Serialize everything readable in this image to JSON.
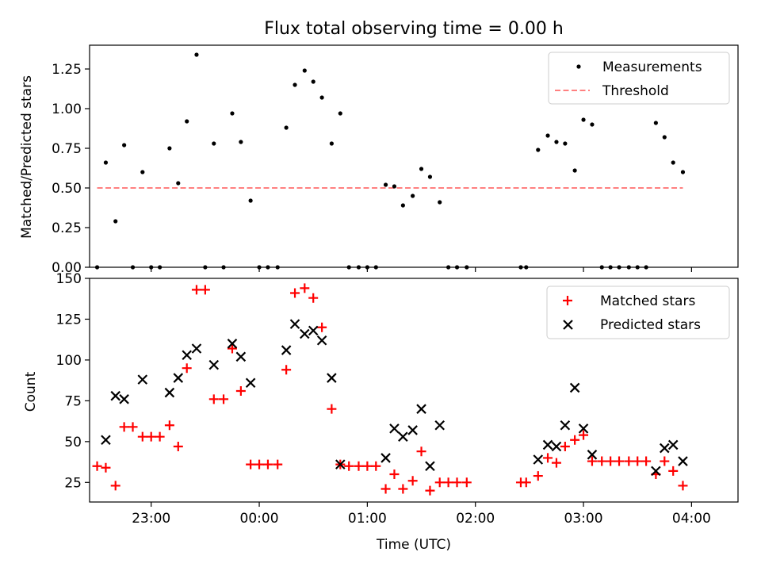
{
  "figure_title": "Flux total observing time = 0.00 h",
  "chart_data": [
    {
      "type": "scatter",
      "title": "Flux total observing time = 0.00 h",
      "xlabel": "",
      "ylabel": "Matched/Predicted stars",
      "xlim": [
        -1.57,
        4.43
      ],
      "ylim": [
        0,
        1.4
      ],
      "yticks": [
        "0.00",
        "0.25",
        "0.50",
        "0.75",
        "1.00",
        "1.25"
      ],
      "legend": {
        "position": "top-right",
        "entries": [
          "Measurements",
          "Threshold"
        ]
      },
      "series": [
        {
          "name": "Measurements",
          "color": "#000000",
          "x": [
            -1.5,
            -1.42,
            -1.33,
            -1.25,
            -1.17,
            -1.08,
            -1.0,
            -0.92,
            -0.83,
            -0.75,
            -0.67,
            -0.58,
            -0.5,
            -0.42,
            -0.33,
            -0.25,
            -0.17,
            -0.08,
            0.0,
            0.08,
            0.17,
            0.25,
            0.33,
            0.42,
            0.5,
            0.58,
            0.67,
            0.75,
            0.83,
            0.92,
            1.0,
            1.08,
            1.17,
            1.25,
            1.33,
            1.42,
            1.5,
            1.58,
            1.67,
            1.75,
            1.83,
            1.92,
            2.42,
            2.47,
            2.58,
            2.67,
            2.75,
            2.83,
            2.92,
            3.0,
            3.08,
            3.17,
            3.25,
            3.33,
            3.42,
            3.5,
            3.58,
            3.67,
            3.75,
            3.83,
            3.92
          ],
          "y": [
            0.0,
            0.66,
            0.29,
            0.77,
            0.0,
            0.6,
            0.0,
            0.0,
            0.75,
            0.53,
            0.92,
            1.34,
            0.0,
            0.78,
            0.0,
            0.97,
            0.79,
            0.42,
            0.0,
            0.0,
            0.0,
            0.88,
            1.15,
            1.24,
            1.17,
            1.07,
            0.78,
            0.97,
            0.0,
            0.0,
            0.0,
            0.0,
            0.52,
            0.51,
            0.39,
            0.45,
            0.62,
            0.57,
            0.41,
            0.0,
            0.0,
            0.0,
            0.0,
            0.0,
            0.74,
            0.83,
            0.79,
            0.78,
            0.61,
            0.93,
            0.9,
            0.0,
            0.0,
            0.0,
            0.0,
            0.0,
            0.0,
            0.91,
            0.82,
            0.66,
            0.6
          ]
        },
        {
          "name": "Threshold",
          "color": "#ff8080",
          "x": [
            -1.5,
            3.92
          ],
          "y": [
            0.5,
            0.5
          ]
        }
      ]
    },
    {
      "type": "scatter",
      "title": "",
      "xlabel": "Time (UTC)",
      "ylabel": "Count",
      "xlim": [
        -1.57,
        4.43
      ],
      "ylim": [
        13,
        150
      ],
      "yticks": [
        "25",
        "50",
        "75",
        "100",
        "125",
        "150"
      ],
      "xticks": [
        "23:00",
        "00:00",
        "01:00",
        "02:00",
        "03:00",
        "04:00"
      ],
      "legend": {
        "position": "top-right",
        "entries": [
          "Matched stars",
          "Predicted stars"
        ]
      },
      "series": [
        {
          "name": "Matched stars",
          "color": "#ff0000",
          "x": [
            -1.5,
            -1.42,
            -1.33,
            -1.25,
            -1.17,
            -1.08,
            -1.0,
            -0.92,
            -0.83,
            -0.75,
            -0.67,
            -0.58,
            -0.5,
            -0.42,
            -0.33,
            -0.25,
            -0.17,
            -0.08,
            0.0,
            0.08,
            0.17,
            0.25,
            0.33,
            0.42,
            0.5,
            0.58,
            0.67,
            0.75,
            0.83,
            0.92,
            1.0,
            1.08,
            1.17,
            1.25,
            1.33,
            1.42,
            1.5,
            1.58,
            1.67,
            1.75,
            1.83,
            1.92,
            2.42,
            2.47,
            2.58,
            2.67,
            2.75,
            2.83,
            2.92,
            3.0,
            3.08,
            3.17,
            3.25,
            3.33,
            3.42,
            3.5,
            3.58,
            3.67,
            3.75,
            3.83,
            3.92
          ],
          "y": [
            35,
            34,
            23,
            59,
            59,
            53,
            53,
            53,
            60,
            47,
            95,
            143,
            143,
            76,
            76,
            107,
            81,
            36,
            36,
            36,
            36,
            94,
            141,
            144,
            138,
            120,
            70,
            36,
            35,
            35,
            35,
            35,
            21,
            30,
            21,
            26,
            44,
            20,
            25,
            25,
            25,
            25,
            25,
            25,
            29,
            40,
            37,
            47,
            51,
            54,
            38,
            38,
            38,
            38,
            38,
            38,
            38,
            30,
            38,
            32,
            23
          ]
        },
        {
          "name": "Predicted stars",
          "color": "#000000",
          "x": [
            -1.42,
            -1.33,
            -1.25,
            -1.08,
            -0.83,
            -0.75,
            -0.67,
            -0.58,
            -0.42,
            -0.25,
            -0.17,
            -0.08,
            0.25,
            0.33,
            0.42,
            0.5,
            0.58,
            0.67,
            0.75,
            1.17,
            1.25,
            1.33,
            1.42,
            1.5,
            1.58,
            1.67,
            2.58,
            2.67,
            2.75,
            2.83,
            2.92,
            3.0,
            3.08,
            3.67,
            3.75,
            3.83,
            3.92
          ],
          "y": [
            51,
            78,
            76,
            88,
            80,
            89,
            103,
            107,
            97,
            110,
            102,
            86,
            106,
            122,
            116,
            118,
            112,
            89,
            36,
            40,
            58,
            53,
            57,
            70,
            35,
            60,
            39,
            48,
            47,
            60,
            83,
            58,
            42,
            32,
            46,
            48,
            38
          ]
        }
      ]
    }
  ]
}
